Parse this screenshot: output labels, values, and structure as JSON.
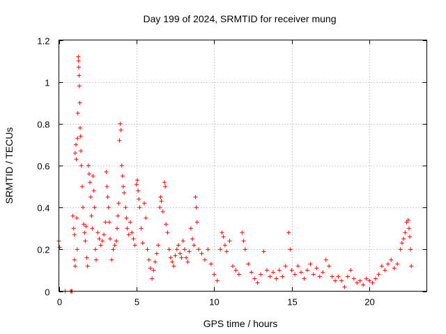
{
  "chart_data": {
    "type": "scatter",
    "title": "Day 199 of 2024, SRMTID for receiver mung",
    "xlabel": "GPS time / hours",
    "ylabel": "SRMTID / TECUs",
    "xlim": [
      0,
      23.7
    ],
    "ylim": [
      0,
      1.2
    ],
    "x_ticks": [
      "0",
      "5",
      "10",
      "15",
      "20"
    ],
    "y_ticks": [
      "0",
      "0.2",
      "0.4",
      "0.6",
      "0.8",
      "1",
      "1.2"
    ],
    "grid": true,
    "marker": "+",
    "color": "#ff0000",
    "series": [
      {
        "name": "SRMTID",
        "points": [
          [
            0.0,
            0.24
          ],
          [
            0.05,
            0.21
          ],
          [
            0.4,
            0.0
          ],
          [
            0.75,
            0.0
          ],
          [
            0.8,
            0.0
          ],
          [
            0.85,
            0.0
          ],
          [
            0.9,
            0.36
          ],
          [
            0.95,
            0.3
          ],
          [
            1.0,
            0.27
          ],
          [
            1.0,
            0.15
          ],
          [
            1.05,
            0.66
          ],
          [
            1.05,
            0.12
          ],
          [
            1.1,
            0.7
          ],
          [
            1.12,
            0.63
          ],
          [
            1.15,
            0.35
          ],
          [
            1.18,
            0.2
          ],
          [
            1.2,
            0.73
          ],
          [
            1.22,
            0.85
          ],
          [
            1.25,
            1.12
          ],
          [
            1.27,
            1.1
          ],
          [
            1.28,
            1.07
          ],
          [
            1.3,
            1.03
          ],
          [
            1.32,
            0.98
          ],
          [
            1.35,
            0.9
          ],
          [
            1.37,
            0.78
          ],
          [
            1.4,
            0.74
          ],
          [
            1.42,
            0.67
          ],
          [
            1.45,
            0.6
          ],
          [
            1.5,
            0.5
          ],
          [
            1.55,
            0.4
          ],
          [
            1.6,
            0.32
          ],
          [
            1.65,
            0.28
          ],
          [
            1.7,
            0.24
          ],
          [
            1.75,
            0.31
          ],
          [
            1.8,
            0.16
          ],
          [
            1.85,
            0.12
          ],
          [
            1.9,
            0.6
          ],
          [
            1.95,
            0.56
          ],
          [
            2.0,
            0.52
          ],
          [
            2.05,
            0.45
          ],
          [
            2.1,
            0.36
          ],
          [
            2.15,
            0.3
          ],
          [
            2.2,
            0.55
          ],
          [
            2.25,
            0.48
          ],
          [
            2.3,
            0.4
          ],
          [
            2.35,
            0.2
          ],
          [
            2.4,
            0.15
          ],
          [
            2.5,
            0.28
          ],
          [
            2.6,
            0.25
          ],
          [
            2.7,
            0.22
          ],
          [
            2.8,
            0.24
          ],
          [
            2.9,
            0.27
          ],
          [
            3.0,
            0.33
          ],
          [
            3.05,
            0.57
          ],
          [
            3.1,
            0.5
          ],
          [
            3.15,
            0.45
          ],
          [
            3.2,
            0.4
          ],
          [
            3.25,
            0.33
          ],
          [
            3.3,
            0.25
          ],
          [
            3.4,
            0.15
          ],
          [
            3.5,
            0.2
          ],
          [
            3.6,
            0.22
          ],
          [
            3.7,
            0.24
          ],
          [
            3.75,
            0.3
          ],
          [
            3.8,
            0.36
          ],
          [
            3.85,
            0.42
          ],
          [
            3.9,
            0.72
          ],
          [
            3.95,
            0.8
          ],
          [
            4.0,
            0.77
          ],
          [
            4.05,
            0.6
          ],
          [
            4.1,
            0.55
          ],
          [
            4.15,
            0.5
          ],
          [
            4.2,
            0.47
          ],
          [
            4.3,
            0.4
          ],
          [
            4.35,
            0.35
          ],
          [
            4.4,
            0.3
          ],
          [
            4.5,
            0.27
          ],
          [
            4.6,
            0.33
          ],
          [
            4.7,
            0.28
          ],
          [
            4.8,
            0.25
          ],
          [
            4.9,
            0.22
          ],
          [
            5.0,
            0.51
          ],
          [
            5.05,
            0.53
          ],
          [
            5.1,
            0.48
          ],
          [
            5.15,
            0.44
          ],
          [
            5.2,
            0.4
          ],
          [
            5.3,
            0.3
          ],
          [
            5.4,
            0.23
          ],
          [
            5.5,
            0.42
          ],
          [
            5.6,
            0.35
          ],
          [
            5.7,
            0.2
          ],
          [
            5.8,
            0.15
          ],
          [
            5.9,
            0.11
          ],
          [
            6.0,
            0.06
          ],
          [
            6.1,
            0.1
          ],
          [
            6.2,
            0.14
          ],
          [
            6.3,
            0.18
          ],
          [
            6.4,
            0.22
          ],
          [
            6.5,
            0.4
          ],
          [
            6.55,
            0.45
          ],
          [
            6.6,
            0.43
          ],
          [
            6.7,
            0.38
          ],
          [
            6.8,
            0.52
          ],
          [
            6.85,
            0.5
          ],
          [
            6.9,
            0.32
          ],
          [
            7.0,
            0.28
          ],
          [
            7.1,
            0.2
          ],
          [
            7.2,
            0.16
          ],
          [
            7.3,
            0.14
          ],
          [
            7.4,
            0.12
          ],
          [
            7.5,
            0.17
          ],
          [
            7.6,
            0.2
          ],
          [
            7.7,
            0.22
          ],
          [
            7.8,
            0.18
          ],
          [
            7.9,
            0.16
          ],
          [
            8.0,
            0.24
          ],
          [
            8.1,
            0.2
          ],
          [
            8.2,
            0.16
          ],
          [
            8.3,
            0.14
          ],
          [
            8.4,
            0.19
          ],
          [
            8.5,
            0.3
          ],
          [
            8.6,
            0.25
          ],
          [
            8.7,
            0.22
          ],
          [
            8.8,
            0.45
          ],
          [
            8.85,
            0.4
          ],
          [
            8.9,
            0.33
          ],
          [
            9.0,
            0.2
          ],
          [
            9.2,
            0.18
          ],
          [
            9.4,
            0.15
          ],
          [
            9.6,
            0.2
          ],
          [
            9.8,
            0.13
          ],
          [
            10.0,
            0.08
          ],
          [
            10.2,
            0.05
          ],
          [
            10.4,
            0.2
          ],
          [
            10.5,
            0.28
          ],
          [
            10.6,
            0.26
          ],
          [
            10.7,
            0.22
          ],
          [
            10.8,
            0.19
          ],
          [
            11.0,
            0.24
          ],
          [
            11.2,
            0.12
          ],
          [
            11.4,
            0.1
          ],
          [
            11.6,
            0.08
          ],
          [
            11.8,
            0.28
          ],
          [
            11.9,
            0.24
          ],
          [
            12.0,
            0.2
          ],
          [
            12.2,
            0.13
          ],
          [
            12.4,
            0.09
          ],
          [
            12.6,
            0.06
          ],
          [
            12.8,
            0.04
          ],
          [
            13.0,
            0.08
          ],
          [
            13.2,
            0.19
          ],
          [
            13.4,
            0.1
          ],
          [
            13.6,
            0.07
          ],
          [
            13.8,
            0.09
          ],
          [
            14.0,
            0.06
          ],
          [
            14.2,
            0.1
          ],
          [
            14.4,
            0.07
          ],
          [
            14.6,
            0.12
          ],
          [
            14.8,
            0.28
          ],
          [
            14.9,
            0.2
          ],
          [
            15.0,
            0.1
          ],
          [
            15.2,
            0.08
          ],
          [
            15.4,
            0.12
          ],
          [
            15.6,
            0.09
          ],
          [
            15.8,
            0.06
          ],
          [
            16.0,
            0.1
          ],
          [
            16.2,
            0.13
          ],
          [
            16.4,
            0.08
          ],
          [
            16.6,
            0.11
          ],
          [
            16.8,
            0.07
          ],
          [
            17.0,
            0.09
          ],
          [
            17.2,
            0.15
          ],
          [
            17.4,
            0.12
          ],
          [
            17.6,
            0.07
          ],
          [
            17.8,
            0.05
          ],
          [
            18.0,
            0.07
          ],
          [
            18.2,
            0.05
          ],
          [
            18.4,
            0.02
          ],
          [
            18.6,
            0.07
          ],
          [
            18.8,
            0.1
          ],
          [
            19.0,
            0.06
          ],
          [
            19.2,
            0.04
          ],
          [
            19.4,
            0.05
          ],
          [
            19.6,
            0.03
          ],
          [
            19.8,
            0.06
          ],
          [
            20.0,
            0.05
          ],
          [
            20.2,
            0.04
          ],
          [
            20.4,
            0.06
          ],
          [
            20.6,
            0.08
          ],
          [
            20.8,
            0.12
          ],
          [
            21.0,
            0.1
          ],
          [
            21.2,
            0.13
          ],
          [
            21.4,
            0.15
          ],
          [
            21.6,
            0.11
          ],
          [
            21.8,
            0.13
          ],
          [
            22.0,
            0.2
          ],
          [
            22.1,
            0.23
          ],
          [
            22.2,
            0.25
          ],
          [
            22.3,
            0.28
          ],
          [
            22.4,
            0.33
          ],
          [
            22.5,
            0.34
          ],
          [
            22.55,
            0.3
          ],
          [
            22.6,
            0.26
          ],
          [
            22.65,
            0.2
          ],
          [
            22.7,
            0.12
          ]
        ]
      }
    ]
  }
}
